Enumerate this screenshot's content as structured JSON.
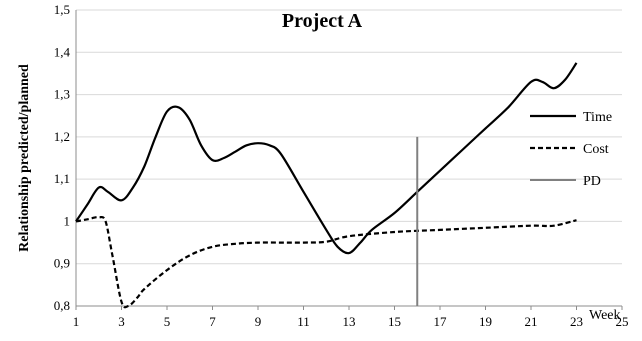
{
  "chart_data": {
    "type": "line",
    "title": "Project A",
    "xlabel": "Week",
    "ylabel": "Relationship predicted/planned",
    "xlim": [
      1,
      25
    ],
    "ylim": [
      0.8,
      1.5
    ],
    "x_ticks": [
      "1",
      "3",
      "5",
      "7",
      "9",
      "11",
      "13",
      "15",
      "17",
      "19",
      "21",
      "23",
      "25"
    ],
    "y_ticks": [
      "0,8",
      "0,9",
      "1",
      "1,1",
      "1,2",
      "1,3",
      "1,4",
      "1,5"
    ],
    "grid": "horizontal",
    "legend_position": "right",
    "series": [
      {
        "name": "Time",
        "style": "solid",
        "color": "#000000",
        "points": [
          [
            1,
            1.0
          ],
          [
            1.5,
            1.04
          ],
          [
            2,
            1.08
          ],
          [
            2.4,
            1.07
          ],
          [
            3,
            1.05
          ],
          [
            3.5,
            1.08
          ],
          [
            4,
            1.13
          ],
          [
            4.5,
            1.2
          ],
          [
            5,
            1.26
          ],
          [
            5.5,
            1.27
          ],
          [
            6,
            1.24
          ],
          [
            6.5,
            1.18
          ],
          [
            7,
            1.145
          ],
          [
            7.5,
            1.15
          ],
          [
            8,
            1.165
          ],
          [
            8.5,
            1.18
          ],
          [
            9,
            1.185
          ],
          [
            9.5,
            1.18
          ],
          [
            10,
            1.16
          ],
          [
            11,
            1.07
          ],
          [
            12,
            0.98
          ],
          [
            12.5,
            0.94
          ],
          [
            13,
            0.925
          ],
          [
            13.5,
            0.95
          ],
          [
            14,
            0.98
          ],
          [
            15,
            1.02
          ],
          [
            16,
            1.07
          ],
          [
            17,
            1.12
          ],
          [
            18,
            1.17
          ],
          [
            19,
            1.22
          ],
          [
            20,
            1.27
          ],
          [
            21,
            1.33
          ],
          [
            21.5,
            1.33
          ],
          [
            22,
            1.315
          ],
          [
            22.5,
            1.335
          ],
          [
            23,
            1.375
          ]
        ]
      },
      {
        "name": "Cost",
        "style": "dashed",
        "color": "#000000",
        "points": [
          [
            1,
            1.0
          ],
          [
            1.5,
            1.005
          ],
          [
            2,
            1.01
          ],
          [
            2.3,
            1.0
          ],
          [
            2.6,
            0.92
          ],
          [
            3,
            0.81
          ],
          [
            3.3,
            0.8
          ],
          [
            3.7,
            0.82
          ],
          [
            4,
            0.84
          ],
          [
            5,
            0.885
          ],
          [
            6,
            0.92
          ],
          [
            7,
            0.94
          ],
          [
            8,
            0.947
          ],
          [
            9,
            0.95
          ],
          [
            10,
            0.95
          ],
          [
            11,
            0.95
          ],
          [
            12,
            0.952
          ],
          [
            13,
            0.965
          ],
          [
            15,
            0.975
          ],
          [
            17,
            0.98
          ],
          [
            19,
            0.985
          ],
          [
            21,
            0.99
          ],
          [
            22,
            0.99
          ],
          [
            23,
            1.003
          ]
        ]
      },
      {
        "name": "PD",
        "style": "solid",
        "color": "#808080",
        "vertical_x": 16,
        "y_range": [
          0.8,
          1.2
        ]
      }
    ]
  }
}
